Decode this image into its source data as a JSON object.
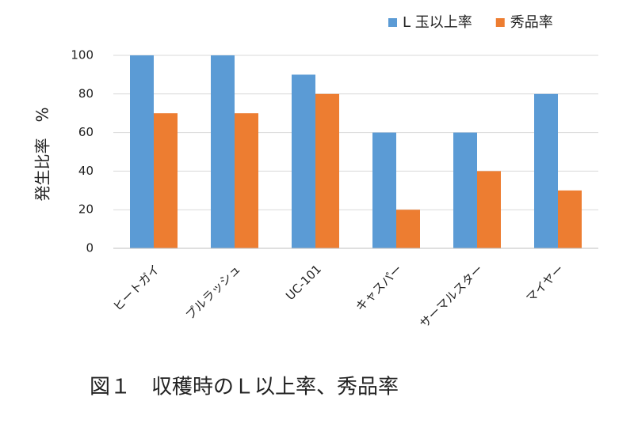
{
  "chart_data": {
    "type": "bar",
    "caption": "図１　収穫時のＬ以上率、秀品率",
    "y_label": "発生比率　%",
    "categories": [
      "ヒートガイ",
      "プルラッシュ",
      "UC-101",
      "キャスパー",
      "サーマルスター",
      "マイヤー"
    ],
    "series": [
      {
        "name": "L 玉以上率",
        "color": "#5b9bd5",
        "values": [
          100,
          100,
          90,
          60,
          60,
          80
        ]
      },
      {
        "name": "秀品率",
        "color": "#ed7d31",
        "values": [
          70,
          70,
          80,
          20,
          40,
          30
        ]
      }
    ],
    "ylim": [
      0,
      100
    ],
    "yticks": [
      0,
      20,
      40,
      60,
      80,
      100
    ],
    "grid": true,
    "legend": "top-right"
  }
}
